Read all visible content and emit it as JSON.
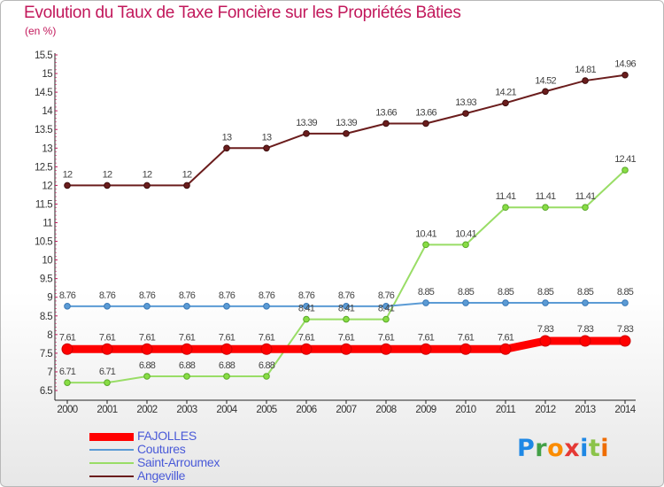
{
  "header": {
    "title": "Evolution du Taux de Taxe Foncière sur les Propriétés Bâties",
    "unit": "(en %)"
  },
  "brand": {
    "letters": [
      "P",
      "r",
      "o",
      "x",
      "i",
      "t",
      "i"
    ],
    "colors": [
      "#1e88e5",
      "#43a047",
      "#fb8c00",
      "#e53935",
      "#1e88e5",
      "#8bc34a",
      "#ef6c00"
    ]
  },
  "chart_data": {
    "type": "line",
    "title": "Evolution du Taux de Taxe Foncière sur les Propriétés Bâties",
    "ylabel": "(en %)",
    "xlabel": "",
    "x": [
      "2000",
      "2001",
      "2002",
      "2003",
      "2004",
      "2005",
      "2006",
      "2007",
      "2008",
      "2009",
      "2010",
      "2011",
      "2012",
      "2013",
      "2014"
    ],
    "ylim": [
      6.5,
      15.5
    ],
    "yticks": [
      "6.5",
      "7",
      "7.5",
      "8",
      "8.5",
      "9",
      "9.5",
      "10",
      "10.5",
      "11",
      "11.5",
      "12",
      "12.5",
      "13",
      "13.5",
      "14",
      "14.5",
      "15",
      "15.5"
    ],
    "grid": false,
    "legend_position": "bottom-left",
    "series": [
      {
        "name": "FAJOLLES",
        "color": "#ff0000",
        "values": [
          7.61,
          7.61,
          7.61,
          7.61,
          7.61,
          7.61,
          7.61,
          7.61,
          7.61,
          7.61,
          7.61,
          7.61,
          7.83,
          7.83,
          7.83
        ],
        "labels": [
          "7.61",
          "7.61",
          "7.61",
          "7.61",
          "7.61",
          "7.61",
          "7.61",
          "7.61",
          "7.61",
          "7.61",
          "7.61",
          "7.61",
          "7.83",
          "7.83",
          "7.83"
        ]
      },
      {
        "name": "Coutures",
        "color": "#5b9bd5",
        "values": [
          8.76,
          8.76,
          8.76,
          8.76,
          8.76,
          8.76,
          8.76,
          8.76,
          8.76,
          8.85,
          8.85,
          8.85,
          8.85,
          8.85,
          8.85
        ],
        "labels": [
          "8.76",
          "8.76",
          "8.76",
          "8.76",
          "8.76",
          "8.76",
          "8.76",
          "8.76",
          "8.76",
          "8.85",
          "8.85",
          "8.85",
          "8.85",
          "8.85",
          "8.85"
        ]
      },
      {
        "name": "Saint-Arroumex",
        "color": "#99dd66",
        "values": [
          6.71,
          6.71,
          6.88,
          6.88,
          6.88,
          6.88,
          8.41,
          8.41,
          8.41,
          10.41,
          10.41,
          11.41,
          11.41,
          11.41,
          12.41
        ],
        "labels": [
          "6.71",
          "6.71",
          "6.88",
          "6.88",
          "6.88",
          "6.88",
          "8.41",
          "8.41",
          "8.41",
          "10.41",
          "10.41",
          "11.41",
          "11.41",
          "11.41",
          "12.41"
        ]
      },
      {
        "name": "Angeville",
        "color": "#6b1d1d",
        "values": [
          12,
          12,
          12,
          12,
          13,
          13,
          13.39,
          13.39,
          13.66,
          13.66,
          13.93,
          14.21,
          14.52,
          14.81,
          14.96
        ],
        "labels": [
          "12",
          "12",
          "12",
          "12",
          "13",
          "13",
          "13.39",
          "13.39",
          "13.66",
          "13.66",
          "13.93",
          "14.21",
          "14.52",
          "14.81",
          "14.96"
        ]
      }
    ]
  }
}
